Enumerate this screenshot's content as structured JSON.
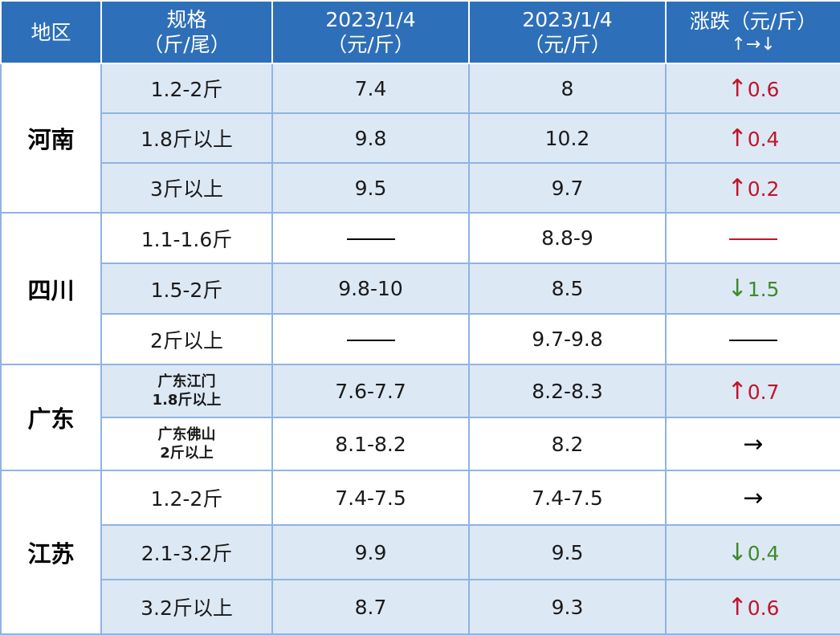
{
  "header": {
    "region": "地区",
    "spec_line1": "规格",
    "spec_line2": "（斤/尾）",
    "date1_line1": "2023/1/4",
    "date1_line2": "（元/斤）",
    "date2_line1": "2023/1/4",
    "date2_line2": "（元/斤）",
    "change_line1": "涨跌（元/斤）",
    "change_line2": "↑→↓"
  },
  "colors": {
    "header_bg": "#2e6fb9",
    "row_shade": "#dde8f5",
    "up": "#c0152a",
    "down": "#3e8a2a",
    "border": "#8eb4e3"
  },
  "regions": {
    "henan": {
      "name": "河南",
      "rows": [
        {
          "spec": "1.2-2斤",
          "price1": "7.4",
          "price2": "8",
          "arrow": "↑",
          "change": "0.6"
        },
        {
          "spec": "1.8斤以上",
          "price1": "9.8",
          "price2": "10.2",
          "arrow": "↑",
          "change": "0.4"
        },
        {
          "spec": "3斤以上",
          "price1": "9.5",
          "price2": "9.7",
          "arrow": "↑",
          "change": "0.2"
        }
      ]
    },
    "sichuan": {
      "name": "四川",
      "rows": [
        {
          "spec": "1.1-1.6斤",
          "price1": "——",
          "price2": "8.8-9",
          "change": "——"
        },
        {
          "spec": "1.5-2斤",
          "price1": "9.8-10",
          "price2": "8.5",
          "arrow": "↓",
          "change": "1.5"
        },
        {
          "spec": "2斤以上",
          "price1": "——",
          "price2": "9.7-9.8",
          "change": "——"
        }
      ]
    },
    "guangdong": {
      "name": "广东",
      "rows": [
        {
          "spec_line1": "广东江门",
          "spec_line2": "1.8斤以上",
          "price1": "7.6-7.7",
          "price2": "8.2-8.3",
          "arrow": "↑",
          "change": "0.7"
        },
        {
          "spec_line1": "广东佛山",
          "spec_line2": "2斤以上",
          "price1": "8.1-8.2",
          "price2": "8.2",
          "arrow": "→"
        }
      ]
    },
    "jiangsu": {
      "name": "江苏",
      "rows": [
        {
          "spec": "1.2-2斤",
          "price1": "7.4-7.5",
          "price2": "7.4-7.5",
          "arrow": "→"
        },
        {
          "spec": "2.1-3.2斤",
          "price1": "9.9",
          "price2": "9.5",
          "arrow": "↓",
          "change": "0.4"
        },
        {
          "spec": "3.2斤以上",
          "price1": "8.7",
          "price2": "9.3",
          "arrow": "↑",
          "change": "0.6"
        }
      ]
    }
  }
}
